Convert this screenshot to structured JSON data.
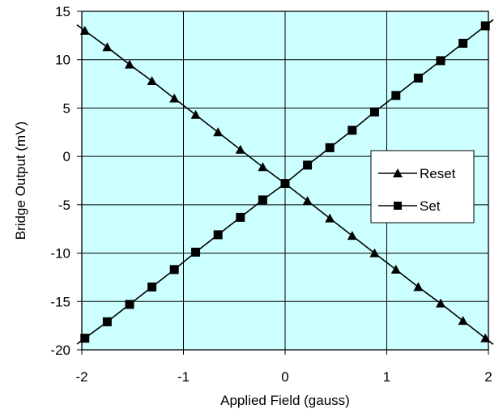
{
  "chart_data": {
    "type": "line",
    "title": "",
    "xlabel": "Applied Field (gauss)",
    "ylabel": "Bridge Output (mV)",
    "xlim": [
      -2,
      2
    ],
    "ylim": [
      -20,
      15
    ],
    "x_ticks": [
      -2,
      -1,
      0,
      1,
      2
    ],
    "y_ticks": [
      -20,
      -15,
      -10,
      -5,
      0,
      5,
      10,
      15
    ],
    "x_tick_labels": [
      "-2",
      "-1",
      "0",
      "1",
      "2"
    ],
    "y_tick_labels": [
      "-20",
      "-15",
      "-10",
      "-5",
      "0",
      "5",
      "10",
      "15"
    ],
    "grid": true,
    "legend_position": "right",
    "colors": {
      "plot_background": "#ccffff",
      "line": "#000000",
      "grid": "#000000"
    },
    "series": [
      {
        "name": "Reset",
        "marker": "triangle",
        "x": [
          -1.97,
          -1.75,
          -1.53,
          -1.31,
          -1.09,
          -0.88,
          -0.66,
          -0.44,
          -0.22,
          0.0,
          0.22,
          0.44,
          0.66,
          0.88,
          1.09,
          1.31,
          1.53,
          1.75,
          1.97
        ],
        "y": [
          13.0,
          11.3,
          9.5,
          7.8,
          6.0,
          4.3,
          2.5,
          0.7,
          -1.1,
          -2.8,
          -4.6,
          -6.4,
          -8.2,
          -10.0,
          -11.7,
          -13.5,
          -15.2,
          -17.0,
          -18.8
        ]
      },
      {
        "name": "Set",
        "marker": "square",
        "x": [
          -1.97,
          -1.75,
          -1.53,
          -1.31,
          -1.09,
          -0.88,
          -0.66,
          -0.44,
          -0.22,
          0.0,
          0.22,
          0.44,
          0.66,
          0.88,
          1.09,
          1.31,
          1.53,
          1.75,
          1.97
        ],
        "y": [
          -18.8,
          -17.1,
          -15.3,
          -13.5,
          -11.7,
          -9.9,
          -8.1,
          -6.3,
          -4.5,
          -2.8,
          -0.9,
          0.9,
          2.7,
          4.6,
          6.3,
          8.1,
          9.9,
          11.7,
          13.5
        ]
      }
    ]
  }
}
